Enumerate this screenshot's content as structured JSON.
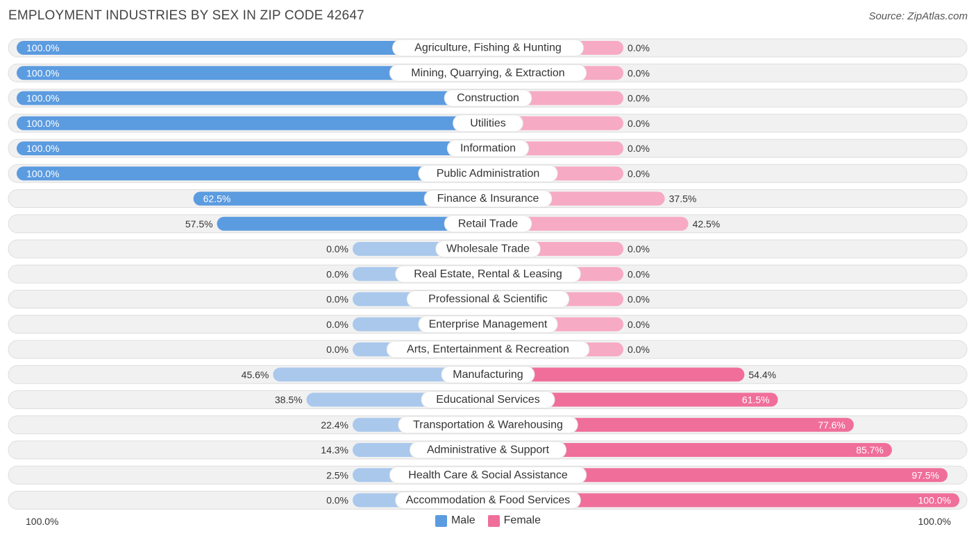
{
  "title": "EMPLOYMENT INDUSTRIES BY SEX IN ZIP CODE 42647",
  "source": "Source: ZipAtlas.com",
  "colors": {
    "male": "#5b9be0",
    "male_light": "#a9c8ec",
    "female": "#f06e9a",
    "female_light": "#f7aac4",
    "track": "#f1f1f1",
    "track_border": "#dedede"
  },
  "axis": {
    "left_label": "100.0%",
    "right_label": "100.0%"
  },
  "legend": [
    {
      "label": "Male",
      "color": "#5b9be0"
    },
    {
      "label": "Female",
      "color": "#f06e9a"
    }
  ],
  "chart_data": {
    "type": "bar",
    "orientation": "horizontal-diverging",
    "title": "EMPLOYMENT INDUSTRIES BY SEX IN ZIP CODE 42647",
    "xlim": [
      -100,
      100
    ],
    "categories": [
      "Agriculture, Fishing & Hunting",
      "Mining, Quarrying, & Extraction",
      "Construction",
      "Utilities",
      "Information",
      "Public Administration",
      "Finance & Insurance",
      "Retail Trade",
      "Wholesale Trade",
      "Real Estate, Rental & Leasing",
      "Professional & Scientific",
      "Enterprise Management",
      "Arts, Entertainment & Recreation",
      "Manufacturing",
      "Educational Services",
      "Transportation & Warehousing",
      "Administrative & Support",
      "Health Care & Social Assistance",
      "Accommodation & Food Services"
    ],
    "series": [
      {
        "name": "Male",
        "values": [
          100.0,
          100.0,
          100.0,
          100.0,
          100.0,
          100.0,
          62.5,
          57.5,
          0.0,
          0.0,
          0.0,
          0.0,
          0.0,
          45.6,
          38.5,
          22.4,
          14.3,
          2.5,
          0.0
        ]
      },
      {
        "name": "Female",
        "values": [
          0.0,
          0.0,
          0.0,
          0.0,
          0.0,
          0.0,
          37.5,
          42.5,
          0.0,
          0.0,
          0.0,
          0.0,
          0.0,
          54.4,
          61.5,
          77.6,
          85.7,
          97.5,
          100.0
        ]
      }
    ],
    "value_labels": {
      "male": [
        "100.0%",
        "100.0%",
        "100.0%",
        "100.0%",
        "100.0%",
        "100.0%",
        "62.5%",
        "57.5%",
        "0.0%",
        "0.0%",
        "0.0%",
        "0.0%",
        "0.0%",
        "45.6%",
        "38.5%",
        "22.4%",
        "14.3%",
        "2.5%",
        "0.0%"
      ],
      "female": [
        "0.0%",
        "0.0%",
        "0.0%",
        "0.0%",
        "0.0%",
        "0.0%",
        "37.5%",
        "42.5%",
        "0.0%",
        "0.0%",
        "0.0%",
        "0.0%",
        "0.0%",
        "54.4%",
        "61.5%",
        "77.6%",
        "85.7%",
        "97.5%",
        "100.0%"
      ]
    },
    "legend_position": "bottom-center"
  }
}
